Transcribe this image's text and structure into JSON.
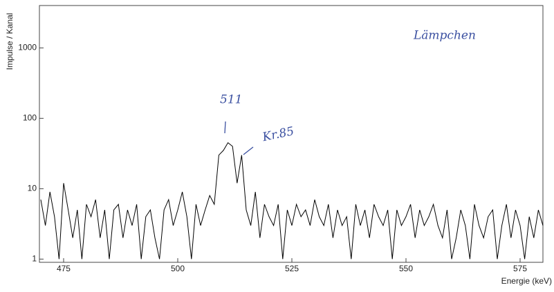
{
  "chart_data": {
    "type": "line",
    "xlabel": "Energie (keV)",
    "ylabel": "Impulse / Kanal",
    "annotations": [
      "511",
      "Kr.85",
      "Lämpchen"
    ],
    "x": [
      470,
      471,
      472,
      473,
      474,
      475,
      476,
      477,
      478,
      479,
      480,
      481,
      482,
      483,
      484,
      485,
      486,
      487,
      488,
      489,
      490,
      491,
      492,
      493,
      494,
      495,
      496,
      497,
      498,
      499,
      500,
      501,
      502,
      503,
      504,
      505,
      506,
      507,
      508,
      509,
      510,
      511,
      512,
      513,
      514,
      515,
      516,
      517,
      518,
      519,
      520,
      521,
      522,
      523,
      524,
      525,
      526,
      527,
      528,
      529,
      530,
      531,
      532,
      533,
      534,
      535,
      536,
      537,
      538,
      539,
      540,
      541,
      542,
      543,
      544,
      545,
      546,
      547,
      548,
      549,
      550,
      551,
      552,
      553,
      554,
      555,
      556,
      557,
      558,
      559,
      560,
      561,
      562,
      563,
      564,
      565,
      566,
      567,
      568,
      569,
      570,
      571,
      572,
      573,
      574,
      575,
      576,
      577,
      578,
      579,
      580
    ],
    "values": [
      7,
      3,
      9,
      4,
      1,
      12,
      5,
      2,
      5,
      1,
      6,
      4,
      7,
      2,
      5,
      1,
      5,
      6,
      2,
      5,
      3,
      6,
      1,
      4,
      5,
      2,
      1,
      5,
      7,
      3,
      5,
      9,
      4,
      1,
      6,
      3,
      5,
      8,
      6,
      30,
      35,
      45,
      40,
      12,
      30,
      5,
      3,
      9,
      2,
      6,
      4,
      3,
      6,
      1,
      5,
      3,
      6,
      4,
      5,
      3,
      7,
      4,
      3,
      6,
      2,
      5,
      3,
      4,
      1,
      6,
      3,
      5,
      2,
      6,
      4,
      3,
      5,
      1,
      5,
      3,
      4,
      6,
      2,
      5,
      3,
      4,
      6,
      3,
      2,
      5,
      1,
      2,
      5,
      3,
      1,
      6,
      3,
      2,
      4,
      5,
      1,
      3,
      6,
      2,
      5,
      3,
      1,
      4,
      2,
      5,
      3
    ],
    "color": "#000000",
    "xlim": [
      469.7,
      580
    ],
    "xticks": [
      475,
      500,
      525,
      550,
      575
    ],
    "ylim": [
      0.9,
      4000
    ],
    "yticks": [
      1,
      10,
      100,
      1000
    ],
    "ylog": true
  }
}
